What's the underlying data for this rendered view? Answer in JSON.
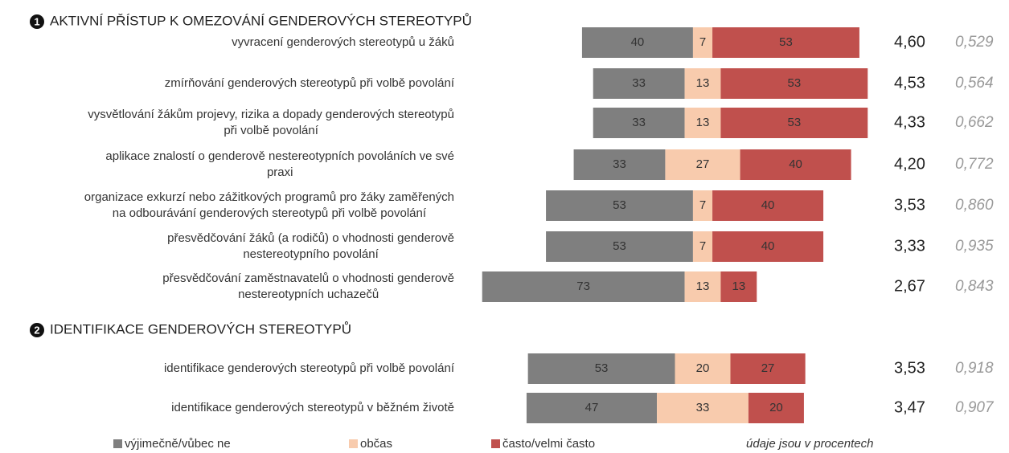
{
  "chart_data": {
    "type": "diverging_bar",
    "series": [
      {
        "name": "výjimečně/vůbec ne",
        "color": "#7f7f7f"
      },
      {
        "name": "občas",
        "color": "#f8cbad"
      },
      {
        "name": "často/velmi často",
        "color": "#c0504d"
      }
    ],
    "note": "údaje jsou v procentech",
    "groups": [
      {
        "number": "1",
        "title": "AKTIVNÍ PŘÍSTUP K OMEZOVÁNÍ GENDEROVÝCH STEREOTYPŮ",
        "items": [
          {
            "label": [
              "vyvracení genderových stereotypů u žáků"
            ],
            "values": [
              40,
              7,
              53
            ],
            "mean": "4,60",
            "sd": "0,529"
          },
          {
            "label": [
              "zmírňování genderových stereotypů při volbě povolání"
            ],
            "values": [
              33,
              13,
              53
            ],
            "mean": "4,53",
            "sd": "0,564"
          },
          {
            "label": [
              "vysvětlování žákům projevy, rizika a dopady genderových stereotypů",
              "při volbě povolání"
            ],
            "values": [
              33,
              13,
              53
            ],
            "mean": "4,33",
            "sd": "0,662"
          },
          {
            "label": [
              "aplikace znalostí o genderově nestereotypních povoláních ve své",
              "praxi"
            ],
            "values": [
              33,
              27,
              40
            ],
            "mean": "4,20",
            "sd": "0,772"
          },
          {
            "label": [
              "organizace exkurzí nebo zážitkových programů pro žáky zaměřených",
              "na odbourávání genderových stereotypů při volbě povolání"
            ],
            "values": [
              53,
              7,
              40
            ],
            "mean": "3,53",
            "sd": "0,860"
          },
          {
            "label": [
              "přesvědčování žáků (a rodičů) o vhodnosti genderově",
              "nestereotypního povolání"
            ],
            "values": [
              53,
              7,
              40
            ],
            "mean": "3,33",
            "sd": "0,935"
          },
          {
            "label": [
              "přesvědčování zaměstnavatelů o vhodnosti genderově",
              "nestereotypních uchazečů"
            ],
            "values": [
              73,
              13,
              13
            ],
            "mean": "2,67",
            "sd": "0,843"
          }
        ]
      },
      {
        "number": "2",
        "title": "IDENTIFIKACE GENDEROVÝCH STEREOTYPŮ",
        "items": [
          {
            "label": [
              "identifikace genderových stereotypů při volbě povolání"
            ],
            "values": [
              53,
              20,
              27
            ],
            "mean": "3,53",
            "sd": "0,918"
          },
          {
            "label": [
              "identifikace genderových stereotypů v běžném životě"
            ],
            "values": [
              47,
              33,
              20
            ],
            "mean": "3,47",
            "sd": "0,907"
          }
        ]
      }
    ]
  }
}
